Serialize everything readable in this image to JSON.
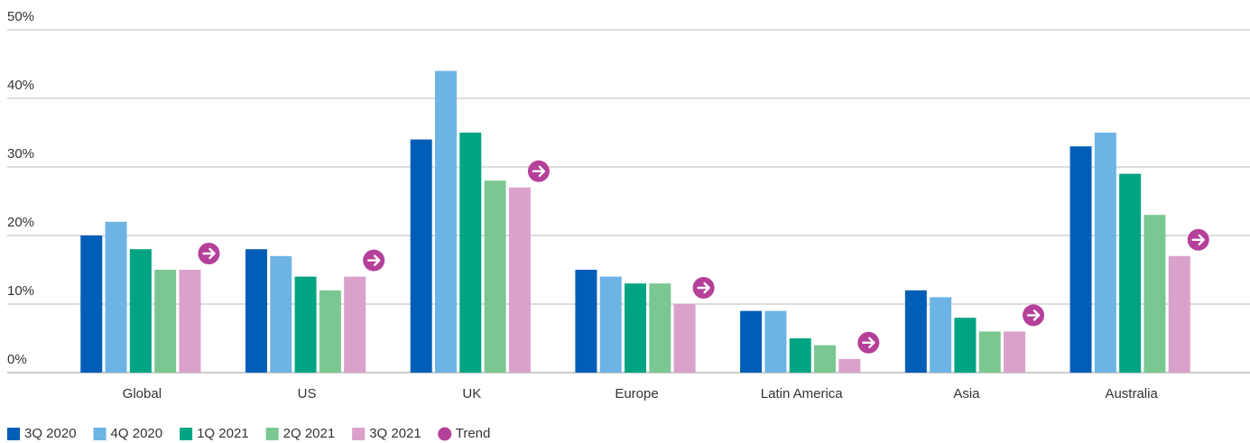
{
  "chart_data": {
    "type": "bar",
    "categories": [
      "Global",
      "US",
      "UK",
      "Europe",
      "Latin America",
      "Asia",
      "Australia"
    ],
    "series": [
      {
        "name": "3Q 2020",
        "color": "#005eb8",
        "values": [
          20,
          18,
          34,
          15,
          9,
          12,
          33
        ]
      },
      {
        "name": "4Q 2020",
        "color": "#6cb4e4",
        "values": [
          22,
          17,
          44,
          14,
          9,
          11,
          35
        ]
      },
      {
        "name": "1Q 2021",
        "color": "#00a482",
        "values": [
          18,
          14,
          35,
          13,
          5,
          8,
          29
        ]
      },
      {
        "name": "2Q 2021",
        "color": "#7bc792",
        "values": [
          15,
          12,
          28,
          13,
          4,
          6,
          23
        ]
      },
      {
        "name": "3Q 2021",
        "color": "#d9a1cb",
        "values": [
          15,
          14,
          27,
          10,
          2,
          6,
          17
        ]
      }
    ],
    "trend": {
      "name": "Trend",
      "color": "#b5409a"
    },
    "ylim": [
      0,
      50
    ],
    "yticks": [
      {
        "value": 0,
        "label": "0%"
      },
      {
        "value": 10,
        "label": "10%"
      },
      {
        "value": 20,
        "label": "20%"
      },
      {
        "value": 30,
        "label": "30%"
      },
      {
        "value": 40,
        "label": "40%"
      },
      {
        "value": 50,
        "label": "50%"
      }
    ],
    "grid": true
  }
}
